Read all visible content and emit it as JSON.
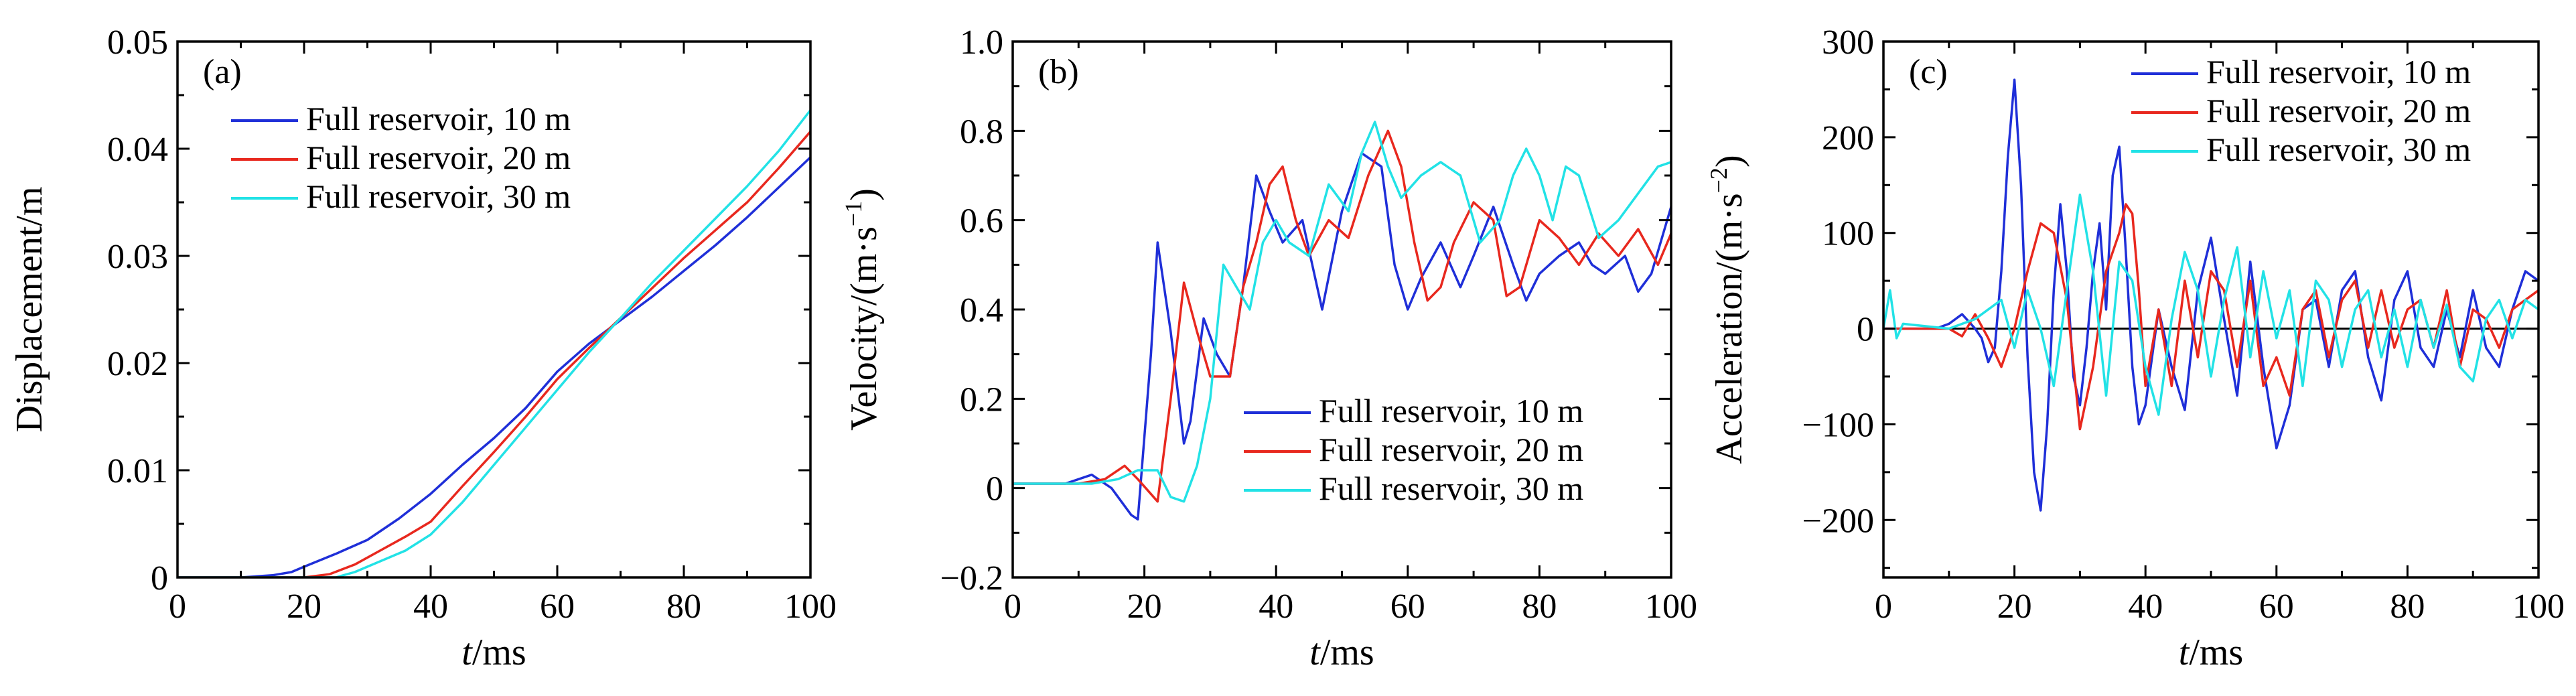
{
  "chart_data": [
    {
      "type": "line",
      "panel_label": "(a)",
      "xlabel_italic": "t",
      "xlabel_unit": "/ms",
      "ylabel": "Displacement/m",
      "xlim": [
        0,
        100
      ],
      "ylim": [
        0,
        0.05
      ],
      "xticks": [
        0,
        20,
        40,
        60,
        80,
        100
      ],
      "yticks": [
        0,
        0.01,
        0.02,
        0.03,
        0.04,
        0.05
      ],
      "ytick_labels": [
        "0",
        "0.01",
        "0.02",
        "0.03",
        "0.04",
        "0.05"
      ],
      "zero_line": false,
      "legend_position": "top-left",
      "series": [
        {
          "name": "Full reservoir, 10 m",
          "color": "#1f2fd8",
          "x": [
            0,
            10,
            15,
            18,
            20,
            25,
            30,
            35,
            40,
            45,
            50,
            55,
            60,
            65,
            70,
            75,
            80,
            85,
            90,
            95,
            100
          ],
          "y": [
            0,
            0,
            0.0002,
            0.0005,
            0.001,
            0.0022,
            0.0035,
            0.0055,
            0.0078,
            0.0105,
            0.013,
            0.0158,
            0.0192,
            0.0218,
            0.024,
            0.0262,
            0.0286,
            0.031,
            0.0336,
            0.0364,
            0.0392
          ]
        },
        {
          "name": "Full reservoir, 20 m",
          "color": "#e8281e",
          "x": [
            0,
            20,
            24,
            28,
            32,
            36,
            40,
            45,
            50,
            55,
            60,
            65,
            70,
            75,
            80,
            85,
            90,
            95,
            100
          ],
          "y": [
            0,
            0,
            0.0003,
            0.0012,
            0.0025,
            0.0038,
            0.0052,
            0.0085,
            0.0117,
            0.015,
            0.0185,
            0.0214,
            0.0242,
            0.027,
            0.0298,
            0.0324,
            0.035,
            0.0382,
            0.0416
          ]
        },
        {
          "name": "Full reservoir, 30 m",
          "color": "#22e2e6",
          "x": [
            0,
            25,
            28,
            32,
            36,
            40,
            45,
            50,
            55,
            60,
            65,
            70,
            75,
            80,
            85,
            90,
            95,
            100
          ],
          "y": [
            0,
            0,
            0.0005,
            0.0015,
            0.0025,
            0.004,
            0.007,
            0.0105,
            0.014,
            0.0175,
            0.021,
            0.0242,
            0.0275,
            0.0305,
            0.0335,
            0.0365,
            0.0398,
            0.0436
          ]
        }
      ]
    },
    {
      "type": "line",
      "panel_label": "(b)",
      "xlabel_italic": "t",
      "xlabel_unit": "/ms",
      "ylabel": "Velocity/(m·s",
      "ylabel_sup": "−1",
      "ylabel_tail": ")",
      "xlim": [
        0,
        100
      ],
      "ylim": [
        -0.2,
        1.0
      ],
      "xticks": [
        0,
        20,
        40,
        60,
        80,
        100
      ],
      "yticks": [
        -0.2,
        0,
        0.2,
        0.4,
        0.6,
        0.8,
        1.0
      ],
      "ytick_labels": [
        "−0.2",
        "0",
        "0.2",
        "0.4",
        "0.6",
        "0.8",
        "1.0"
      ],
      "zero_line": false,
      "legend_position": "bottom-right",
      "series": [
        {
          "name": "Full reservoir, 10 m",
          "color": "#1f2fd8",
          "x": [
            0,
            8,
            12,
            15,
            18,
            19,
            21,
            22,
            24,
            26,
            27,
            29,
            31,
            33,
            35,
            37,
            39,
            41,
            44,
            47,
            50,
            53,
            56,
            58,
            60,
            62,
            65,
            68,
            70,
            73,
            76,
            78,
            80,
            83,
            86,
            88,
            90,
            93,
            95,
            97,
            100
          ],
          "y": [
            0.01,
            0.01,
            0.03,
            0.0,
            -0.06,
            -0.07,
            0.3,
            0.55,
            0.35,
            0.1,
            0.15,
            0.38,
            0.3,
            0.25,
            0.45,
            0.7,
            0.62,
            0.55,
            0.6,
            0.4,
            0.62,
            0.75,
            0.72,
            0.5,
            0.4,
            0.47,
            0.55,
            0.45,
            0.52,
            0.63,
            0.5,
            0.42,
            0.48,
            0.52,
            0.55,
            0.5,
            0.48,
            0.52,
            0.44,
            0.48,
            0.63
          ]
        },
        {
          "name": "Full reservoir, 20 m",
          "color": "#e8281e",
          "x": [
            0,
            10,
            14,
            17,
            19,
            22,
            24,
            26,
            28,
            30,
            33,
            35,
            37,
            39,
            41,
            43,
            45,
            48,
            51,
            54,
            57,
            59,
            61,
            63,
            65,
            67,
            70,
            73,
            75,
            77,
            80,
            83,
            86,
            89,
            92,
            95,
            98,
            100
          ],
          "y": [
            0.01,
            0.01,
            0.02,
            0.05,
            0.02,
            -0.03,
            0.2,
            0.46,
            0.35,
            0.25,
            0.25,
            0.45,
            0.55,
            0.68,
            0.72,
            0.6,
            0.52,
            0.6,
            0.56,
            0.7,
            0.8,
            0.72,
            0.55,
            0.42,
            0.45,
            0.55,
            0.64,
            0.6,
            0.43,
            0.45,
            0.6,
            0.56,
            0.5,
            0.57,
            0.52,
            0.58,
            0.5,
            0.57
          ]
        },
        {
          "name": "Full reservoir, 30 m",
          "color": "#22e2e6",
          "x": [
            0,
            12,
            16,
            19,
            22,
            24,
            26,
            28,
            30,
            32,
            34,
            36,
            38,
            40,
            42,
            45,
            48,
            51,
            53,
            55,
            57,
            59,
            62,
            65,
            68,
            71,
            74,
            76,
            78,
            80,
            82,
            84,
            86,
            89,
            92,
            95,
            98,
            100
          ],
          "y": [
            0.01,
            0.01,
            0.02,
            0.04,
            0.04,
            -0.02,
            -0.03,
            0.05,
            0.2,
            0.5,
            0.45,
            0.4,
            0.55,
            0.6,
            0.55,
            0.52,
            0.68,
            0.62,
            0.75,
            0.82,
            0.72,
            0.65,
            0.7,
            0.73,
            0.7,
            0.55,
            0.6,
            0.7,
            0.76,
            0.7,
            0.6,
            0.72,
            0.7,
            0.56,
            0.6,
            0.66,
            0.72,
            0.73
          ]
        }
      ]
    },
    {
      "type": "line",
      "panel_label": "(c)",
      "xlabel_italic": "t",
      "xlabel_unit": "/ms",
      "ylabel": "Acceleration/(m·s",
      "ylabel_sup": "−2",
      "ylabel_tail": ")",
      "xlim": [
        0,
        100
      ],
      "ylim": [
        -260,
        300
      ],
      "xticks": [
        0,
        20,
        40,
        60,
        80,
        100
      ],
      "yticks": [
        -200,
        -100,
        0,
        100,
        200,
        300
      ],
      "ytick_labels": [
        "−200",
        "−100",
        "0",
        "100",
        "200",
        "300"
      ],
      "zero_line": true,
      "legend_position": "top-right",
      "series": [
        {
          "name": "Full reservoir, 10 m",
          "color": "#1f2fd8",
          "x": [
            0,
            8,
            10,
            12,
            14,
            15,
            16,
            17,
            18,
            19,
            20,
            21,
            22,
            23,
            24,
            25,
            26,
            27,
            28,
            29,
            30,
            31,
            32,
            33,
            34,
            35,
            36,
            37,
            38,
            39,
            40,
            42,
            44,
            46,
            48,
            50,
            52,
            54,
            56,
            58,
            60,
            62,
            64,
            66,
            68,
            70,
            72,
            74,
            76,
            78,
            80,
            82,
            84,
            86,
            88,
            90,
            92,
            94,
            96,
            98,
            100
          ],
          "y": [
            0,
            0,
            5,
            15,
            0,
            -10,
            -35,
            -20,
            60,
            180,
            260,
            150,
            -30,
            -150,
            -190,
            -100,
            40,
            130,
            60,
            -50,
            -80,
            -20,
            60,
            110,
            20,
            160,
            190,
            80,
            -40,
            -100,
            -80,
            20,
            -40,
            -85,
            40,
            95,
            10,
            -70,
            70,
            -40,
            -125,
            -80,
            20,
            30,
            -40,
            40,
            60,
            -30,
            -75,
            30,
            60,
            -20,
            -40,
            20,
            -30,
            40,
            -20,
            -40,
            20,
            60,
            50
          ]
        },
        {
          "name": "Full reservoir, 20 m",
          "color": "#e8281e",
          "x": [
            0,
            10,
            12,
            14,
            16,
            18,
            20,
            22,
            24,
            26,
            28,
            30,
            32,
            34,
            36,
            37,
            38,
            39,
            40,
            42,
            44,
            46,
            48,
            50,
            52,
            54,
            56,
            58,
            60,
            62,
            64,
            66,
            68,
            70,
            72,
            74,
            76,
            78,
            80,
            82,
            84,
            86,
            88,
            90,
            92,
            94,
            96,
            98,
            100
          ],
          "y": [
            0,
            0,
            -8,
            15,
            -10,
            -40,
            0,
            60,
            110,
            100,
            30,
            -105,
            -40,
            60,
            100,
            130,
            120,
            40,
            -60,
            20,
            -60,
            50,
            -30,
            60,
            40,
            -40,
            50,
            -60,
            -30,
            -70,
            20,
            40,
            -30,
            30,
            50,
            -20,
            40,
            -20,
            20,
            30,
            -20,
            40,
            -40,
            20,
            10,
            -20,
            20,
            30,
            40
          ]
        },
        {
          "name": "Full reservoir, 30 m",
          "color": "#22e2e6",
          "x": [
            0,
            1,
            2,
            3,
            10,
            14,
            18,
            20,
            22,
            24,
            26,
            28,
            30,
            32,
            34,
            36,
            38,
            40,
            42,
            44,
            46,
            48,
            50,
            52,
            54,
            56,
            58,
            60,
            62,
            64,
            66,
            68,
            70,
            72,
            74,
            76,
            78,
            80,
            82,
            84,
            86,
            88,
            90,
            92,
            94,
            96,
            98,
            100
          ],
          "y": [
            0,
            40,
            -10,
            5,
            0,
            10,
            30,
            -20,
            40,
            0,
            -60,
            40,
            140,
            60,
            -70,
            70,
            50,
            -40,
            -90,
            10,
            80,
            40,
            -50,
            30,
            85,
            -30,
            60,
            -10,
            40,
            -60,
            50,
            30,
            -40,
            20,
            40,
            -30,
            20,
            -40,
            30,
            -20,
            25,
            -40,
            -55,
            10,
            30,
            -10,
            30,
            20
          ]
        }
      ]
    }
  ]
}
